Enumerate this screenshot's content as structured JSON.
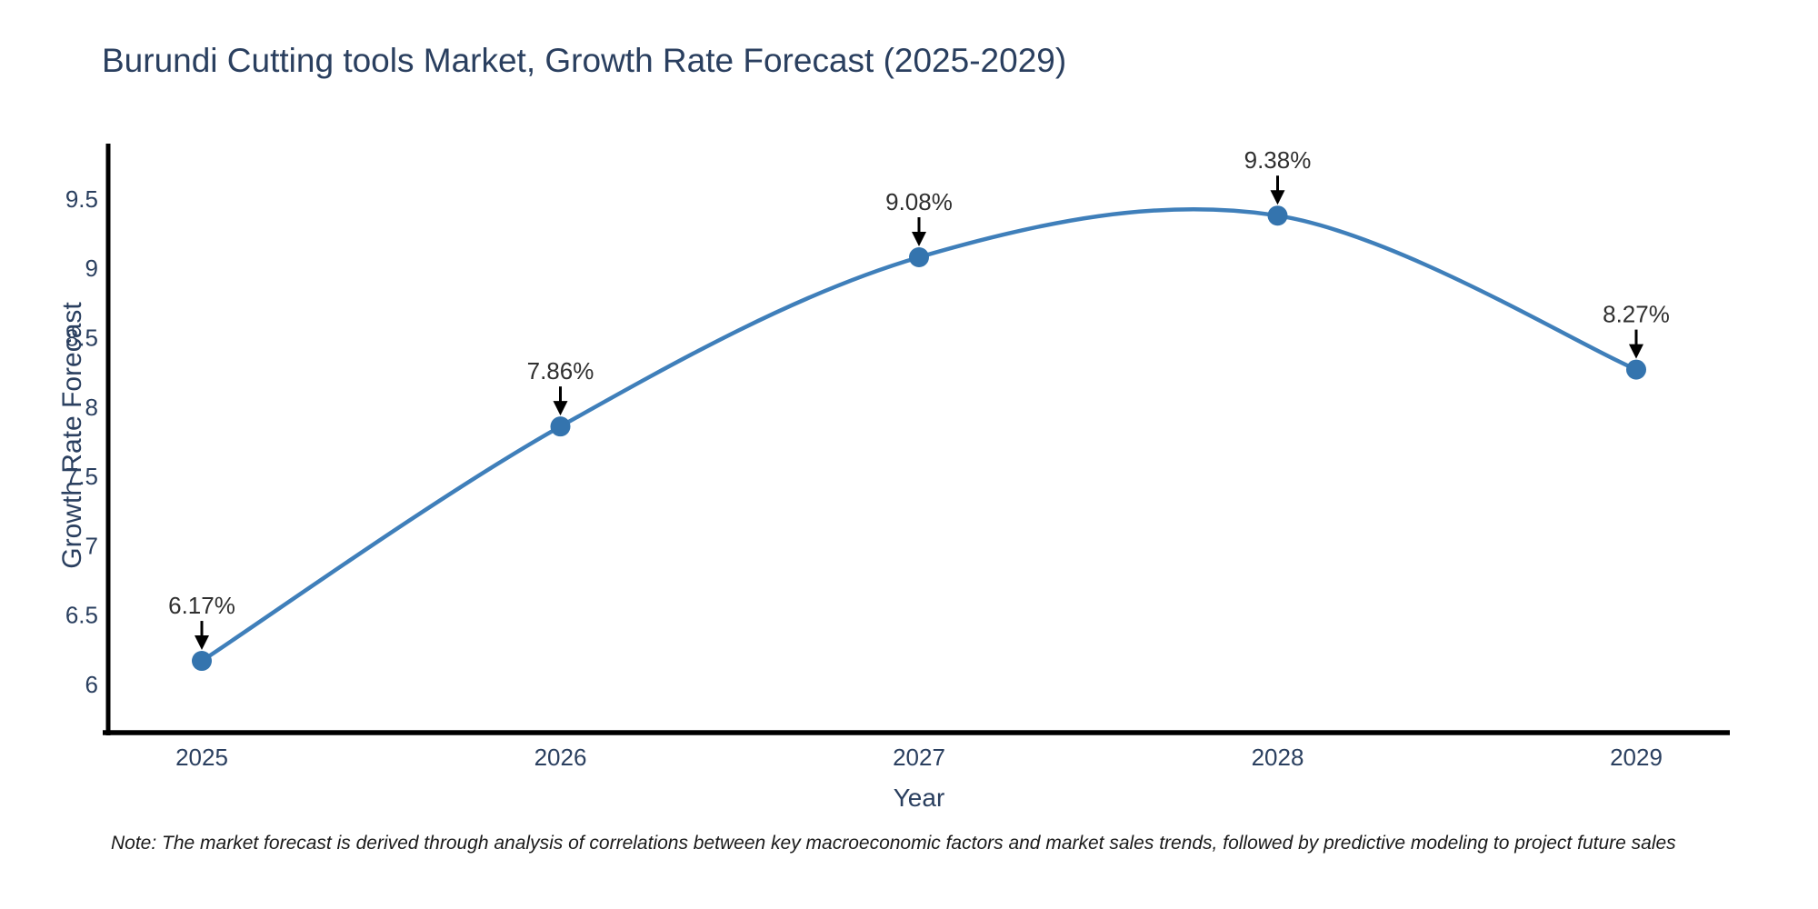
{
  "note": "Note: The market forecast is derived through analysis of correlations between key macroeconomic factors and market sales trends, followed by predictive modeling to project future sales",
  "chart_data": {
    "type": "line",
    "line_shape": "spline",
    "title": "Burundi Cutting tools Market, Growth Rate Forecast (2025-2029)",
    "categories": [
      "2025",
      "2026",
      "2027",
      "2028",
      "2029"
    ],
    "values": [
      6.17,
      7.86,
      9.08,
      9.38,
      8.27
    ],
    "point_labels": [
      "6.17%",
      "7.86%",
      "9.08%",
      "9.38%",
      "8.27%"
    ],
    "xlabel": "Year",
    "ylabel": "Growth Rate Forecast",
    "y_ticks": [
      6,
      6.5,
      7,
      7.5,
      8,
      8.5,
      9,
      9.5
    ],
    "ylim": [
      5.65,
      9.9
    ],
    "grid": false,
    "legend": false,
    "annotation_arrows": true,
    "colors": {
      "line": "#3f7fba",
      "marker": "#3474ae",
      "axis": "#000000",
      "text": "#2a3f5f",
      "annotation": "#2f2f2f"
    }
  }
}
